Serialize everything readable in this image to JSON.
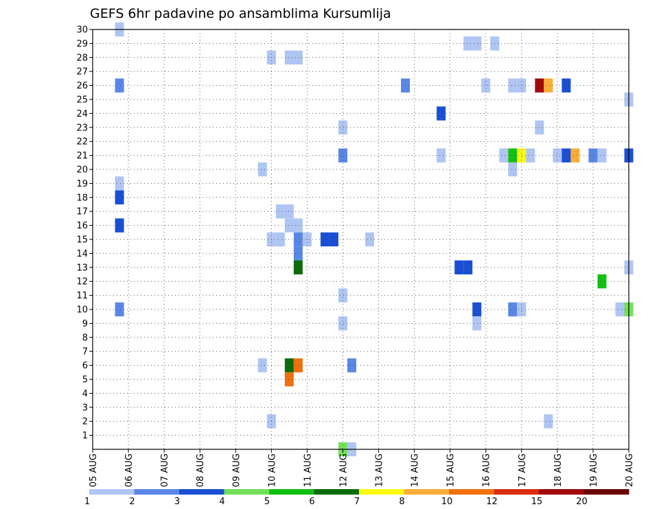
{
  "chart_data": {
    "type": "heatmap",
    "title": "GEFS 6hr padavine po ansamblima Kursumlija",
    "x_tick_labels": [
      "05 AUG",
      "06 AUG",
      "07 AUG",
      "08 AUG",
      "09 AUG",
      "10 AUG",
      "11 AUG",
      "12 AUG",
      "13 AUG",
      "14 AUG",
      "15 AUG",
      "16 AUG",
      "17 AUG",
      "18 AUG",
      "19 AUG",
      "20 AUG"
    ],
    "x_range_days": [
      0,
      15
    ],
    "y_tick_labels": [
      "1",
      "2",
      "3",
      "4",
      "5",
      "6",
      "7",
      "8",
      "9",
      "10",
      "11",
      "12",
      "13",
      "14",
      "15",
      "16",
      "17",
      "18",
      "19",
      "20",
      "21",
      "22",
      "23",
      "24",
      "25",
      "26",
      "27",
      "28",
      "29",
      "30"
    ],
    "y_range_members": [
      0,
      30
    ],
    "grid": true,
    "colorbar": {
      "levels": [
        "1",
        "2",
        "3",
        "4",
        "5",
        "6",
        "7",
        "8",
        "10",
        "12",
        "15",
        "20"
      ],
      "colors": [
        "#afc5f3",
        "#5a87e6",
        "#1a4fd4",
        "#72e05a",
        "#12bf12",
        "#0c6c0c",
        "#fafa12",
        "#f8ae38",
        "#f0700e",
        "#da2d0e",
        "#a00a0a",
        "#6a0404"
      ]
    },
    "cells": [
      {
        "m": 30,
        "d": 0.75,
        "c": 1
      },
      {
        "m": 29,
        "d": 10.5,
        "c": 1
      },
      {
        "m": 29,
        "d": 10.75,
        "c": 1
      },
      {
        "m": 29,
        "d": 11.25,
        "c": 1
      },
      {
        "m": 28,
        "d": 5.0,
        "c": 1
      },
      {
        "m": 28,
        "d": 5.5,
        "c": 1
      },
      {
        "m": 28,
        "d": 5.75,
        "c": 1
      },
      {
        "m": 26,
        "d": 0.75,
        "c": 2
      },
      {
        "m": 26,
        "d": 8.75,
        "c": 2
      },
      {
        "m": 26,
        "d": 11.0,
        "c": 1
      },
      {
        "m": 26,
        "d": 11.75,
        "c": 1
      },
      {
        "m": 26,
        "d": 12.0,
        "c": 1
      },
      {
        "m": 26,
        "d": 12.5,
        "c": 11
      },
      {
        "m": 26,
        "d": 12.75,
        "c": 8
      },
      {
        "m": 26,
        "d": 13.25,
        "c": 3
      },
      {
        "m": 25,
        "d": 15.0,
        "c": 1
      },
      {
        "m": 24,
        "d": 9.75,
        "c": 3
      },
      {
        "m": 23,
        "d": 7.0,
        "c": 1
      },
      {
        "m": 23,
        "d": 12.5,
        "c": 1
      },
      {
        "m": 21,
        "d": 7.0,
        "c": 2
      },
      {
        "m": 21,
        "d": 9.75,
        "c": 1
      },
      {
        "m": 21,
        "d": 11.5,
        "c": 1
      },
      {
        "m": 21,
        "d": 11.75,
        "c": 5
      },
      {
        "m": 21,
        "d": 12.0,
        "c": 7
      },
      {
        "m": 21,
        "d": 12.25,
        "c": 1
      },
      {
        "m": 21,
        "d": 13.0,
        "c": 1
      },
      {
        "m": 21,
        "d": 13.25,
        "c": 3
      },
      {
        "m": 21,
        "d": 13.5,
        "c": 8
      },
      {
        "m": 21,
        "d": 14.0,
        "c": 2
      },
      {
        "m": 21,
        "d": 14.25,
        "c": 1
      },
      {
        "m": 21,
        "d": 15.0,
        "c": 3
      },
      {
        "m": 20,
        "d": 4.75,
        "c": 1
      },
      {
        "m": 20,
        "d": 11.75,
        "c": 1
      },
      {
        "m": 19,
        "d": 0.75,
        "c": 1
      },
      {
        "m": 18,
        "d": 0.75,
        "c": 3
      },
      {
        "m": 17,
        "d": 5.25,
        "c": 1
      },
      {
        "m": 17,
        "d": 5.5,
        "c": 1
      },
      {
        "m": 16,
        "d": 5.5,
        "c": 1
      },
      {
        "m": 16,
        "d": 5.75,
        "c": 1
      },
      {
        "m": 16,
        "d": 0.75,
        "c": 3
      },
      {
        "m": 15,
        "d": 5.0,
        "c": 1
      },
      {
        "m": 15,
        "d": 5.25,
        "c": 1
      },
      {
        "m": 15,
        "d": 5.75,
        "c": 2
      },
      {
        "m": 15,
        "d": 6.0,
        "c": 1
      },
      {
        "m": 15,
        "d": 6.5,
        "c": 3
      },
      {
        "m": 15,
        "d": 6.75,
        "c": 3
      },
      {
        "m": 15,
        "d": 7.75,
        "c": 1
      },
      {
        "m": 14,
        "d": 5.75,
        "c": 2
      },
      {
        "m": 13,
        "d": 5.75,
        "c": 6
      },
      {
        "m": 13,
        "d": 10.25,
        "c": 3
      },
      {
        "m": 13,
        "d": 10.5,
        "c": 3
      },
      {
        "m": 13,
        "d": 15.0,
        "c": 1
      },
      {
        "m": 12,
        "d": 14.25,
        "c": 5
      },
      {
        "m": 11,
        "d": 7.0,
        "c": 1
      },
      {
        "m": 10,
        "d": 0.75,
        "c": 2
      },
      {
        "m": 10,
        "d": 10.75,
        "c": 3
      },
      {
        "m": 10,
        "d": 11.75,
        "c": 2
      },
      {
        "m": 10,
        "d": 12.0,
        "c": 1
      },
      {
        "m": 10,
        "d": 14.75,
        "c": 1
      },
      {
        "m": 10,
        "d": 15.0,
        "c": 4
      },
      {
        "m": 9,
        "d": 7.0,
        "c": 1
      },
      {
        "m": 9,
        "d": 10.75,
        "c": 1
      },
      {
        "m": 6,
        "d": 4.75,
        "c": 1
      },
      {
        "m": 6,
        "d": 5.5,
        "c": 6
      },
      {
        "m": 6,
        "d": 5.75,
        "c": 9
      },
      {
        "m": 6,
        "d": 7.25,
        "c": 2
      },
      {
        "m": 5,
        "d": 5.5,
        "c": 9
      },
      {
        "m": 2,
        "d": 5.0,
        "c": 1
      },
      {
        "m": 2,
        "d": 12.75,
        "c": 1
      },
      {
        "m": 0,
        "d": 7.0,
        "c": 4
      },
      {
        "m": 0,
        "d": 7.25,
        "c": 1
      }
    ]
  }
}
